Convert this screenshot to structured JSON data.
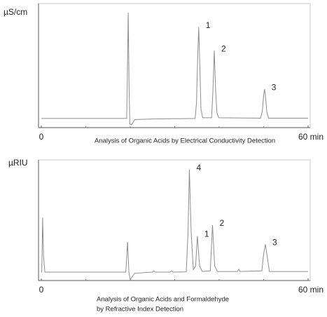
{
  "chart_data": [
    {
      "type": "line",
      "y_label": "µS/cm",
      "caption": [
        "Analysis of Organic Acids by Electrical Conductivity Detection"
      ],
      "xlim": [
        0,
        60
      ],
      "ylim": [
        0,
        100
      ],
      "xticks": [
        0,
        {
          "value": 60,
          "label": "60 min"
        }
      ],
      "xminorticks": [
        10,
        20,
        30,
        40,
        50
      ],
      "x": [
        0,
        19.2,
        19.35,
        19.55,
        19.75,
        19.9,
        20.3,
        21,
        25,
        34.6,
        34.9,
        35.15,
        35.4,
        35.65,
        35.9,
        36.3,
        38.3,
        38.6,
        38.9,
        39.2,
        39.5,
        39.9,
        49.3,
        49.7,
        50.0,
        50.2,
        50.4,
        50.7,
        51.1,
        60
      ],
      "series": [
        {
          "color": "#8c8c8c",
          "values": [
            7.4,
            7.4,
            40,
            92.6,
            30,
            3,
            2.3,
            6.5,
            7,
            7.4,
            20,
            55,
            81,
            50,
            15,
            8,
            8,
            30,
            62,
            30,
            12,
            8,
            7.6,
            13,
            26,
            31,
            26,
            13,
            7.6,
            7.6
          ]
        }
      ],
      "peaks": [
        {
          "label": "1",
          "x": 35.4,
          "y": 81
        },
        {
          "label": "2",
          "x": 38.9,
          "y": 62
        },
        {
          "label": "3",
          "x": 50.2,
          "y": 31
        }
      ]
    },
    {
      "type": "line",
      "y_label": "µRIU",
      "caption": [
        "Analysis of Organic Acids and Formaldehyde",
        "by Refractive Index Detection"
      ],
      "xlim": [
        0,
        60
      ],
      "ylim": [
        0,
        100
      ],
      "xticks": [
        0,
        {
          "value": 60,
          "label": "60 min"
        }
      ],
      "xminorticks": [
        10,
        20,
        30,
        40,
        50
      ],
      "x": [
        0,
        0.1,
        0.3,
        0.5,
        0.8,
        19,
        19.4,
        19.7,
        20.0,
        20.4,
        21,
        25,
        25.3,
        25.6,
        29,
        29.3,
        29.6,
        32.6,
        33.0,
        33.3,
        33.7,
        34.2,
        34.7,
        35.1,
        35.6,
        36.2,
        38.0,
        38.5,
        39.0,
        39.6,
        44.1,
        44.4,
        44.7,
        49.6,
        50.0,
        50.4,
        50.8,
        51.3,
        60
      ],
      "series": [
        {
          "color": "#8c8c8c",
          "values": [
            7,
            7,
            52,
            20,
            7,
            7,
            32,
            7,
            0.5,
            3,
            6,
            7,
            8.1,
            7,
            7,
            8.1,
            7,
            7.2,
            40,
            92,
            40,
            9,
            12,
            37,
            12,
            7.5,
            8,
            46,
            12,
            7.5,
            7.5,
            9.3,
            7.5,
            8,
            22,
            30,
            20,
            7.5,
            7.5
          ]
        }
      ],
      "peaks": [
        {
          "label": "4",
          "x": 33.3,
          "y": 92
        },
        {
          "label": "1",
          "x": 35.1,
          "y": 37
        },
        {
          "label": "2",
          "x": 38.5,
          "y": 46
        },
        {
          "label": "3",
          "x": 50.4,
          "y": 30
        }
      ]
    }
  ]
}
